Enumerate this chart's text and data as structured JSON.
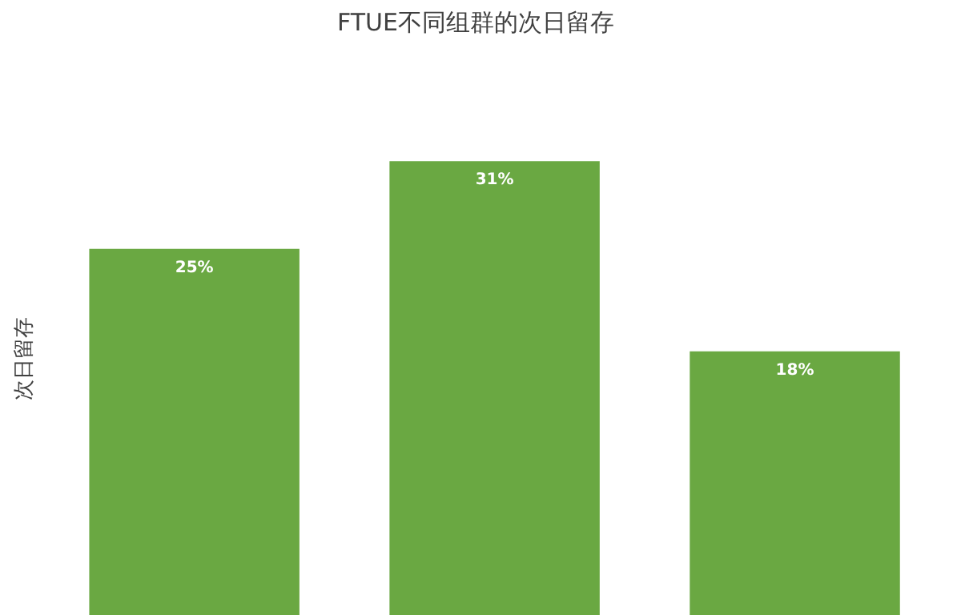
{
  "chart_data": {
    "type": "bar",
    "title": "FTUE不同组群的次日留存",
    "ylabel": "次日留存",
    "categories": [
      null,
      null,
      null
    ],
    "values": [
      25,
      31,
      18
    ],
    "value_labels": [
      "25%",
      "31%",
      "18%"
    ],
    "color": "#6aa842",
    "tick_labels": false,
    "grid": false,
    "legend": false
  }
}
